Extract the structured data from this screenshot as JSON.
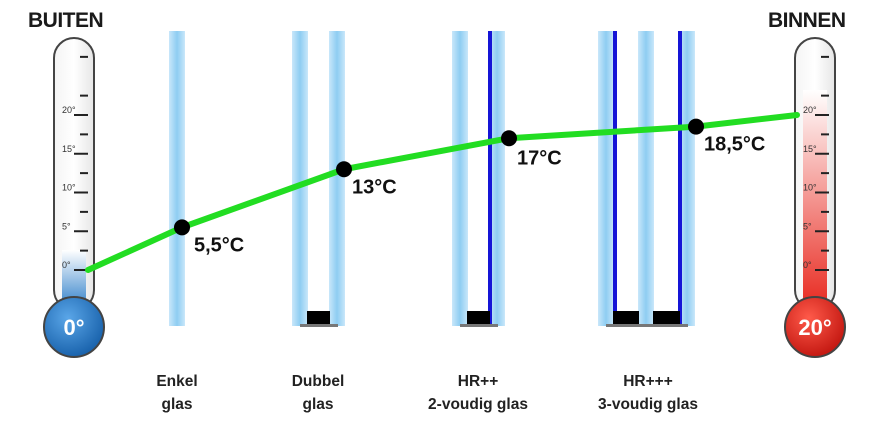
{
  "outside": {
    "title": "BUITEN",
    "bulb_label": "0°",
    "bulb_color": "#1f6fc0"
  },
  "inside": {
    "title": "BINNEN",
    "bulb_label": "20°",
    "bulb_color": "#e0201a"
  },
  "scale_ticks": [
    "0°",
    "5°",
    "10°",
    "15°",
    "20°"
  ],
  "glass_types": [
    {
      "caption_line1": "Enkel",
      "caption_line2": "glas",
      "temperature": 5.5,
      "temperature_label": "5,5°C"
    },
    {
      "caption_line1": "Dubbel",
      "caption_line2": "glas",
      "temperature": 13,
      "temperature_label": "13°C"
    },
    {
      "caption_line1": "HR++",
      "caption_line2": "2-voudig glas",
      "temperature": 17,
      "temperature_label": "17°C"
    },
    {
      "caption_line1": "HR+++",
      "caption_line2": "3-voudig glas",
      "temperature": 18.5,
      "temperature_label": "18,5°C"
    }
  ],
  "line_endpoints": {
    "outside_temperature": 0,
    "inside_temperature": 20
  },
  "colors": {
    "curve": "#22dd22",
    "glass": "#a6d6f4",
    "coating": "#1515d6",
    "spacer": "#000000",
    "point": "#000000"
  }
}
